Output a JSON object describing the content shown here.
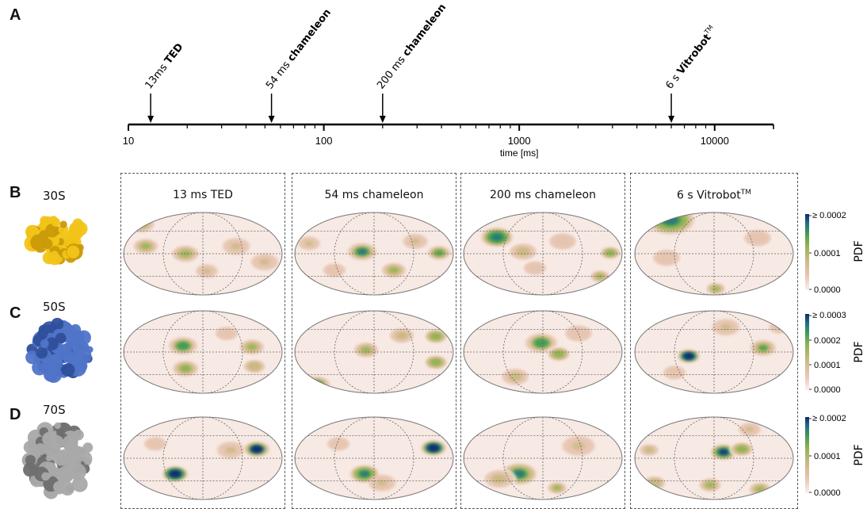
{
  "panel_letters": {
    "a": "A",
    "b": "B",
    "c": "C",
    "d": "D"
  },
  "timeline": {
    "xlabel": "time [ms]",
    "scale": "log",
    "xlim": [
      10,
      20000
    ],
    "ticks": [
      "10",
      "100",
      "1000",
      "10000"
    ],
    "events": [
      {
        "value": 13,
        "prefix": "13ms ",
        "bold": "TED",
        "sup": ""
      },
      {
        "value": 54,
        "prefix": "54 ms ",
        "bold": "chameleon",
        "sup": ""
      },
      {
        "value": 200,
        "prefix": "200 ms ",
        "bold": "chameleon",
        "sup": ""
      },
      {
        "value": 6000,
        "prefix": "6 s ",
        "bold": "Vitrobot",
        "sup": "TM"
      }
    ]
  },
  "columns": [
    {
      "label": "13 ms TED"
    },
    {
      "label": "54 ms chameleon"
    },
    {
      "label": "200 ms chameleon"
    },
    {
      "label": "6 s Vitrobot",
      "sup": "TM"
    }
  ],
  "rows": [
    {
      "label": "30S",
      "color": "#f2c418"
    },
    {
      "label": "50S",
      "color": "#4f74c8"
    },
    {
      "label": "70S",
      "color": "#a9a9a9"
    }
  ],
  "colorbars": [
    {
      "max_label": "≥ 0.0002",
      "mid_label": "0.0001",
      "min_label": "0.0000",
      "title": "PDF"
    },
    {
      "max_label": "≥ 0.0003",
      "mid_label": "0.0002",
      "low_label": "0.0001",
      "min_label": "0.0000",
      "title": "PDF"
    },
    {
      "max_label": "≥ 0.0002",
      "mid_label": "0.0001",
      "min_label": "0.0000",
      "title": "PDF"
    }
  ],
  "colormap": [
    "#faf0ee",
    "#e6c4b0",
    "#c9ba80",
    "#8fb24f",
    "#3f9b55",
    "#1f6e86",
    "#0b2a6b"
  ],
  "chart_data": {
    "type": "heatmap",
    "projection": "mollweide",
    "rows": [
      "30S",
      "50S",
      "70S"
    ],
    "columns": [
      "13 ms TED",
      "54 ms chameleon",
      "200 ms chameleon",
      "6 s VitrobotTM"
    ],
    "maps": [
      [
        {
          "blobs": [
            [
              -0.78,
              0.72,
              0.1,
              0.45
            ],
            [
              -0.72,
              0.18,
              0.09,
              0.45
            ],
            [
              -0.22,
              0.0,
              0.1,
              0.45
            ],
            [
              0.05,
              -0.42,
              0.08,
              0.3
            ],
            [
              0.42,
              0.18,
              0.1,
              0.3
            ],
            [
              0.78,
              -0.2,
              0.1,
              0.3
            ]
          ]
        },
        {
          "blobs": [
            [
              -0.15,
              0.05,
              0.09,
              0.8
            ],
            [
              0.25,
              -0.4,
              0.09,
              0.45
            ],
            [
              0.82,
              0.02,
              0.07,
              0.7
            ],
            [
              -0.82,
              0.25,
              0.08,
              0.3
            ],
            [
              0.52,
              0.3,
              0.09,
              0.3
            ],
            [
              -0.5,
              -0.4,
              0.1,
              0.25
            ]
          ]
        },
        {
          "blobs": [
            [
              -0.58,
              0.4,
              0.1,
              0.95
            ],
            [
              -0.25,
              0.05,
              0.1,
              0.35
            ],
            [
              0.85,
              0.02,
              0.07,
              0.55
            ],
            [
              0.72,
              -0.55,
              0.07,
              0.5
            ],
            [
              0.25,
              0.3,
              0.12,
              0.25
            ],
            [
              -0.1,
              -0.35,
              0.1,
              0.25
            ]
          ]
        },
        {
          "blobs": [
            [
              -0.55,
              0.82,
              0.15,
              0.9
            ],
            [
              0.02,
              -0.85,
              0.07,
              0.45
            ],
            [
              0.55,
              0.38,
              0.12,
              0.25
            ],
            [
              -0.6,
              -0.1,
              0.12,
              0.2
            ]
          ]
        }
      ],
      [
        {
          "blobs": [
            [
              -0.25,
              0.15,
              0.09,
              0.75
            ],
            [
              -0.22,
              -0.4,
              0.08,
              0.6
            ],
            [
              0.62,
              0.12,
              0.09,
              0.5
            ],
            [
              0.65,
              -0.35,
              0.08,
              0.4
            ],
            [
              0.3,
              0.45,
              0.1,
              0.25
            ]
          ]
        },
        {
          "blobs": [
            [
              -0.72,
              -0.78,
              0.08,
              0.8
            ],
            [
              -0.1,
              0.05,
              0.09,
              0.45
            ],
            [
              0.78,
              0.38,
              0.08,
              0.55
            ],
            [
              0.78,
              -0.25,
              0.08,
              0.55
            ],
            [
              0.35,
              0.4,
              0.09,
              0.35
            ]
          ]
        },
        {
          "blobs": [
            [
              -0.02,
              0.22,
              0.1,
              0.75
            ],
            [
              0.2,
              -0.05,
              0.08,
              0.55
            ],
            [
              -0.35,
              -0.6,
              0.1,
              0.35
            ],
            [
              0.45,
              0.45,
              0.12,
              0.25
            ]
          ]
        },
        {
          "blobs": [
            [
              -0.32,
              -0.1,
              0.07,
              1.3
            ],
            [
              0.62,
              0.1,
              0.08,
              0.65
            ],
            [
              0.15,
              0.6,
              0.1,
              0.3
            ],
            [
              0.82,
              0.6,
              0.09,
              0.25
            ],
            [
              -0.5,
              -0.5,
              0.1,
              0.2
            ]
          ]
        }
      ],
      [
        {
          "blobs": [
            [
              -0.35,
              -0.38,
              0.08,
              1.4
            ],
            [
              0.68,
              0.22,
              0.08,
              1.2
            ],
            [
              0.35,
              0.2,
              0.1,
              0.3
            ],
            [
              -0.6,
              0.35,
              0.1,
              0.25
            ]
          ]
        },
        {
          "blobs": [
            [
              -0.12,
              -0.38,
              0.09,
              0.9
            ],
            [
              0.75,
              0.25,
              0.08,
              1.3
            ],
            [
              0.1,
              -0.6,
              0.1,
              0.3
            ],
            [
              -0.45,
              0.35,
              0.1,
              0.25
            ]
          ]
        },
        {
          "blobs": [
            [
              -0.3,
              -0.38,
              0.11,
              0.85
            ],
            [
              0.18,
              -0.72,
              0.07,
              0.45
            ],
            [
              -0.55,
              -0.5,
              0.11,
              0.35
            ],
            [
              0.45,
              0.3,
              0.12,
              0.3
            ]
          ]
        },
        {
          "blobs": [
            [
              0.12,
              0.15,
              0.08,
              1.0
            ],
            [
              0.35,
              0.22,
              0.08,
              0.55
            ],
            [
              -0.05,
              -0.65,
              0.08,
              0.5
            ],
            [
              -0.75,
              -0.6,
              0.08,
              0.4
            ],
            [
              0.58,
              -0.75,
              0.08,
              0.45
            ],
            [
              -0.82,
              0.2,
              0.07,
              0.35
            ],
            [
              0.45,
              0.7,
              0.08,
              0.3
            ]
          ]
        }
      ]
    ]
  }
}
